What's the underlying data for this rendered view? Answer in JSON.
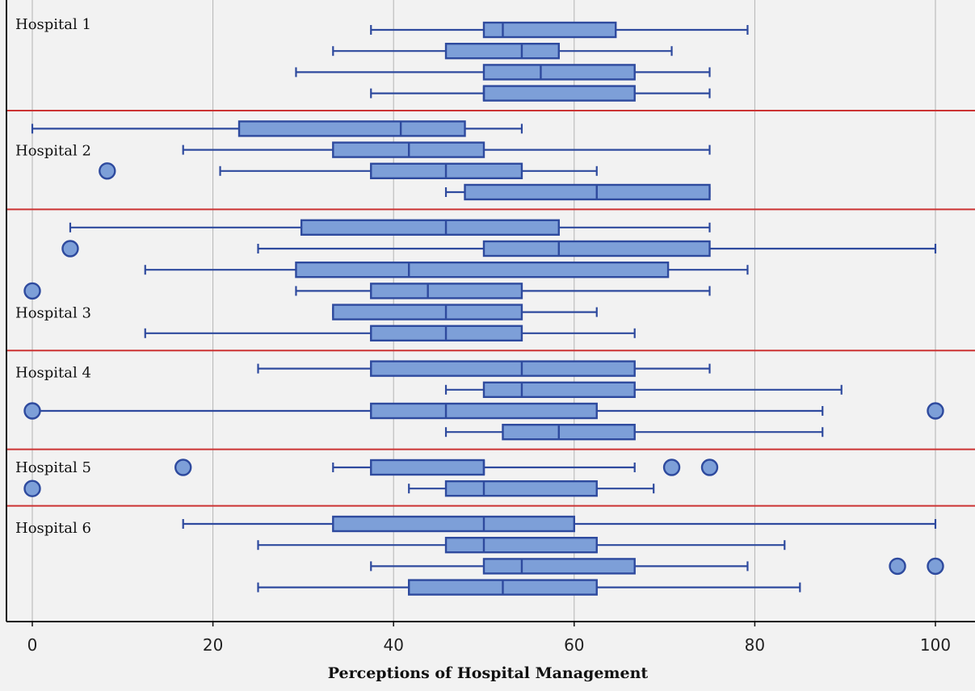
{
  "chart_data": {
    "type": "boxplot",
    "orientation": "horizontal",
    "title": "",
    "xlabel": "Perceptions of Hospital Management",
    "xlim": [
      -2.8,
      104
    ],
    "xticks": [
      0,
      20,
      40,
      60,
      80,
      100
    ],
    "grid": "vertical",
    "colors": {
      "box_fill": "#7d9fd8",
      "box_stroke": "#2e4a9e",
      "separator": "#cc3333",
      "grid": "#b3b3b3",
      "axis": "#111111",
      "background": "#f2f2f2"
    },
    "groups": [
      {
        "label": "Hospital 1",
        "boxes": [
          {
            "whisker_low": 37.5,
            "q1": 50,
            "median": 52.1,
            "q3": 64.6,
            "whisker_high": 79.2,
            "outliers": []
          },
          {
            "whisker_low": 33.3,
            "q1": 45.8,
            "median": 54.2,
            "q3": 58.3,
            "whisker_high": 70.8,
            "outliers": []
          },
          {
            "whisker_low": 29.2,
            "q1": 50,
            "median": 56.3,
            "q3": 66.7,
            "whisker_high": 75,
            "outliers": []
          },
          {
            "whisker_low": 37.5,
            "q1": 50,
            "median": 50,
            "q3": 66.7,
            "whisker_high": 75,
            "outliers": []
          }
        ]
      },
      {
        "label": "Hospital 2",
        "boxes": [
          {
            "whisker_low": 0,
            "q1": 22.9,
            "median": 40.8,
            "q3": 47.9,
            "whisker_high": 54.2,
            "outliers": []
          },
          {
            "whisker_low": 16.7,
            "q1": 33.3,
            "median": 41.7,
            "q3": 50,
            "whisker_high": 75,
            "outliers": []
          },
          {
            "whisker_low": 20.8,
            "q1": 37.5,
            "median": 45.8,
            "q3": 54.2,
            "whisker_high": 62.5,
            "outliers": [
              8.3
            ]
          },
          {
            "whisker_low": 45.8,
            "q1": 47.9,
            "median": 62.5,
            "q3": 75,
            "whisker_high": 75,
            "outliers": []
          }
        ]
      },
      {
        "label": "Hospital 3",
        "boxes": [
          {
            "whisker_low": 4.2,
            "q1": 29.8,
            "median": 45.8,
            "q3": 58.3,
            "whisker_high": 75,
            "outliers": []
          },
          {
            "whisker_low": 25,
            "q1": 50,
            "median": 58.3,
            "q3": 75,
            "whisker_high": 100,
            "outliers": [
              4.2
            ]
          },
          {
            "whisker_low": 12.5,
            "q1": 29.2,
            "median": 41.7,
            "q3": 70.4,
            "whisker_high": 79.2,
            "outliers": []
          },
          {
            "whisker_low": 29.2,
            "q1": 37.5,
            "median": 43.8,
            "q3": 54.2,
            "whisker_high": 75,
            "outliers": [
              0
            ]
          },
          {
            "whisker_low": 33.3,
            "q1": 33.3,
            "median": 45.8,
            "q3": 54.2,
            "whisker_high": 62.5,
            "outliers": []
          },
          {
            "whisker_low": 12.5,
            "q1": 37.5,
            "median": 45.8,
            "q3": 54.2,
            "whisker_high": 66.7,
            "outliers": []
          }
        ]
      },
      {
        "label": "Hospital 4",
        "boxes": [
          {
            "whisker_low": 25,
            "q1": 37.5,
            "median": 54.2,
            "q3": 66.7,
            "whisker_high": 75,
            "outliers": []
          },
          {
            "whisker_low": 45.8,
            "q1": 50,
            "median": 54.2,
            "q3": 66.7,
            "whisker_high": 89.6,
            "outliers": []
          },
          {
            "whisker_low": 0,
            "q1": 37.5,
            "median": 45.8,
            "q3": 62.5,
            "whisker_high": 87.5,
            "outliers": [
              0,
              100
            ]
          },
          {
            "whisker_low": 45.8,
            "q1": 52.1,
            "median": 58.3,
            "q3": 66.7,
            "whisker_high": 87.5,
            "outliers": []
          }
        ]
      },
      {
        "label": "Hospital 5",
        "boxes": [
          {
            "whisker_low": 33.3,
            "q1": 37.5,
            "median": 50,
            "q3": 50,
            "whisker_high": 66.7,
            "outliers": [
              16.7,
              70.8,
              75
            ]
          },
          {
            "whisker_low": 41.7,
            "q1": 45.8,
            "median": 50,
            "q3": 62.5,
            "whisker_high": 68.8,
            "outliers": [
              0
            ]
          }
        ]
      },
      {
        "label": "Hospital 6",
        "boxes": [
          {
            "whisker_low": 16.7,
            "q1": 33.3,
            "median": 50,
            "q3": 60,
            "whisker_high": 100,
            "outliers": []
          },
          {
            "whisker_low": 25,
            "q1": 45.8,
            "median": 50,
            "q3": 62.5,
            "whisker_high": 83.3,
            "outliers": []
          },
          {
            "whisker_low": 37.5,
            "q1": 50,
            "median": 54.2,
            "q3": 66.7,
            "whisker_high": 79.2,
            "outliers": [
              95.8,
              100
            ]
          },
          {
            "whisker_low": 25,
            "q1": 41.7,
            "median": 52.1,
            "q3": 62.5,
            "whisker_high": 85,
            "outliers": []
          }
        ]
      }
    ]
  }
}
